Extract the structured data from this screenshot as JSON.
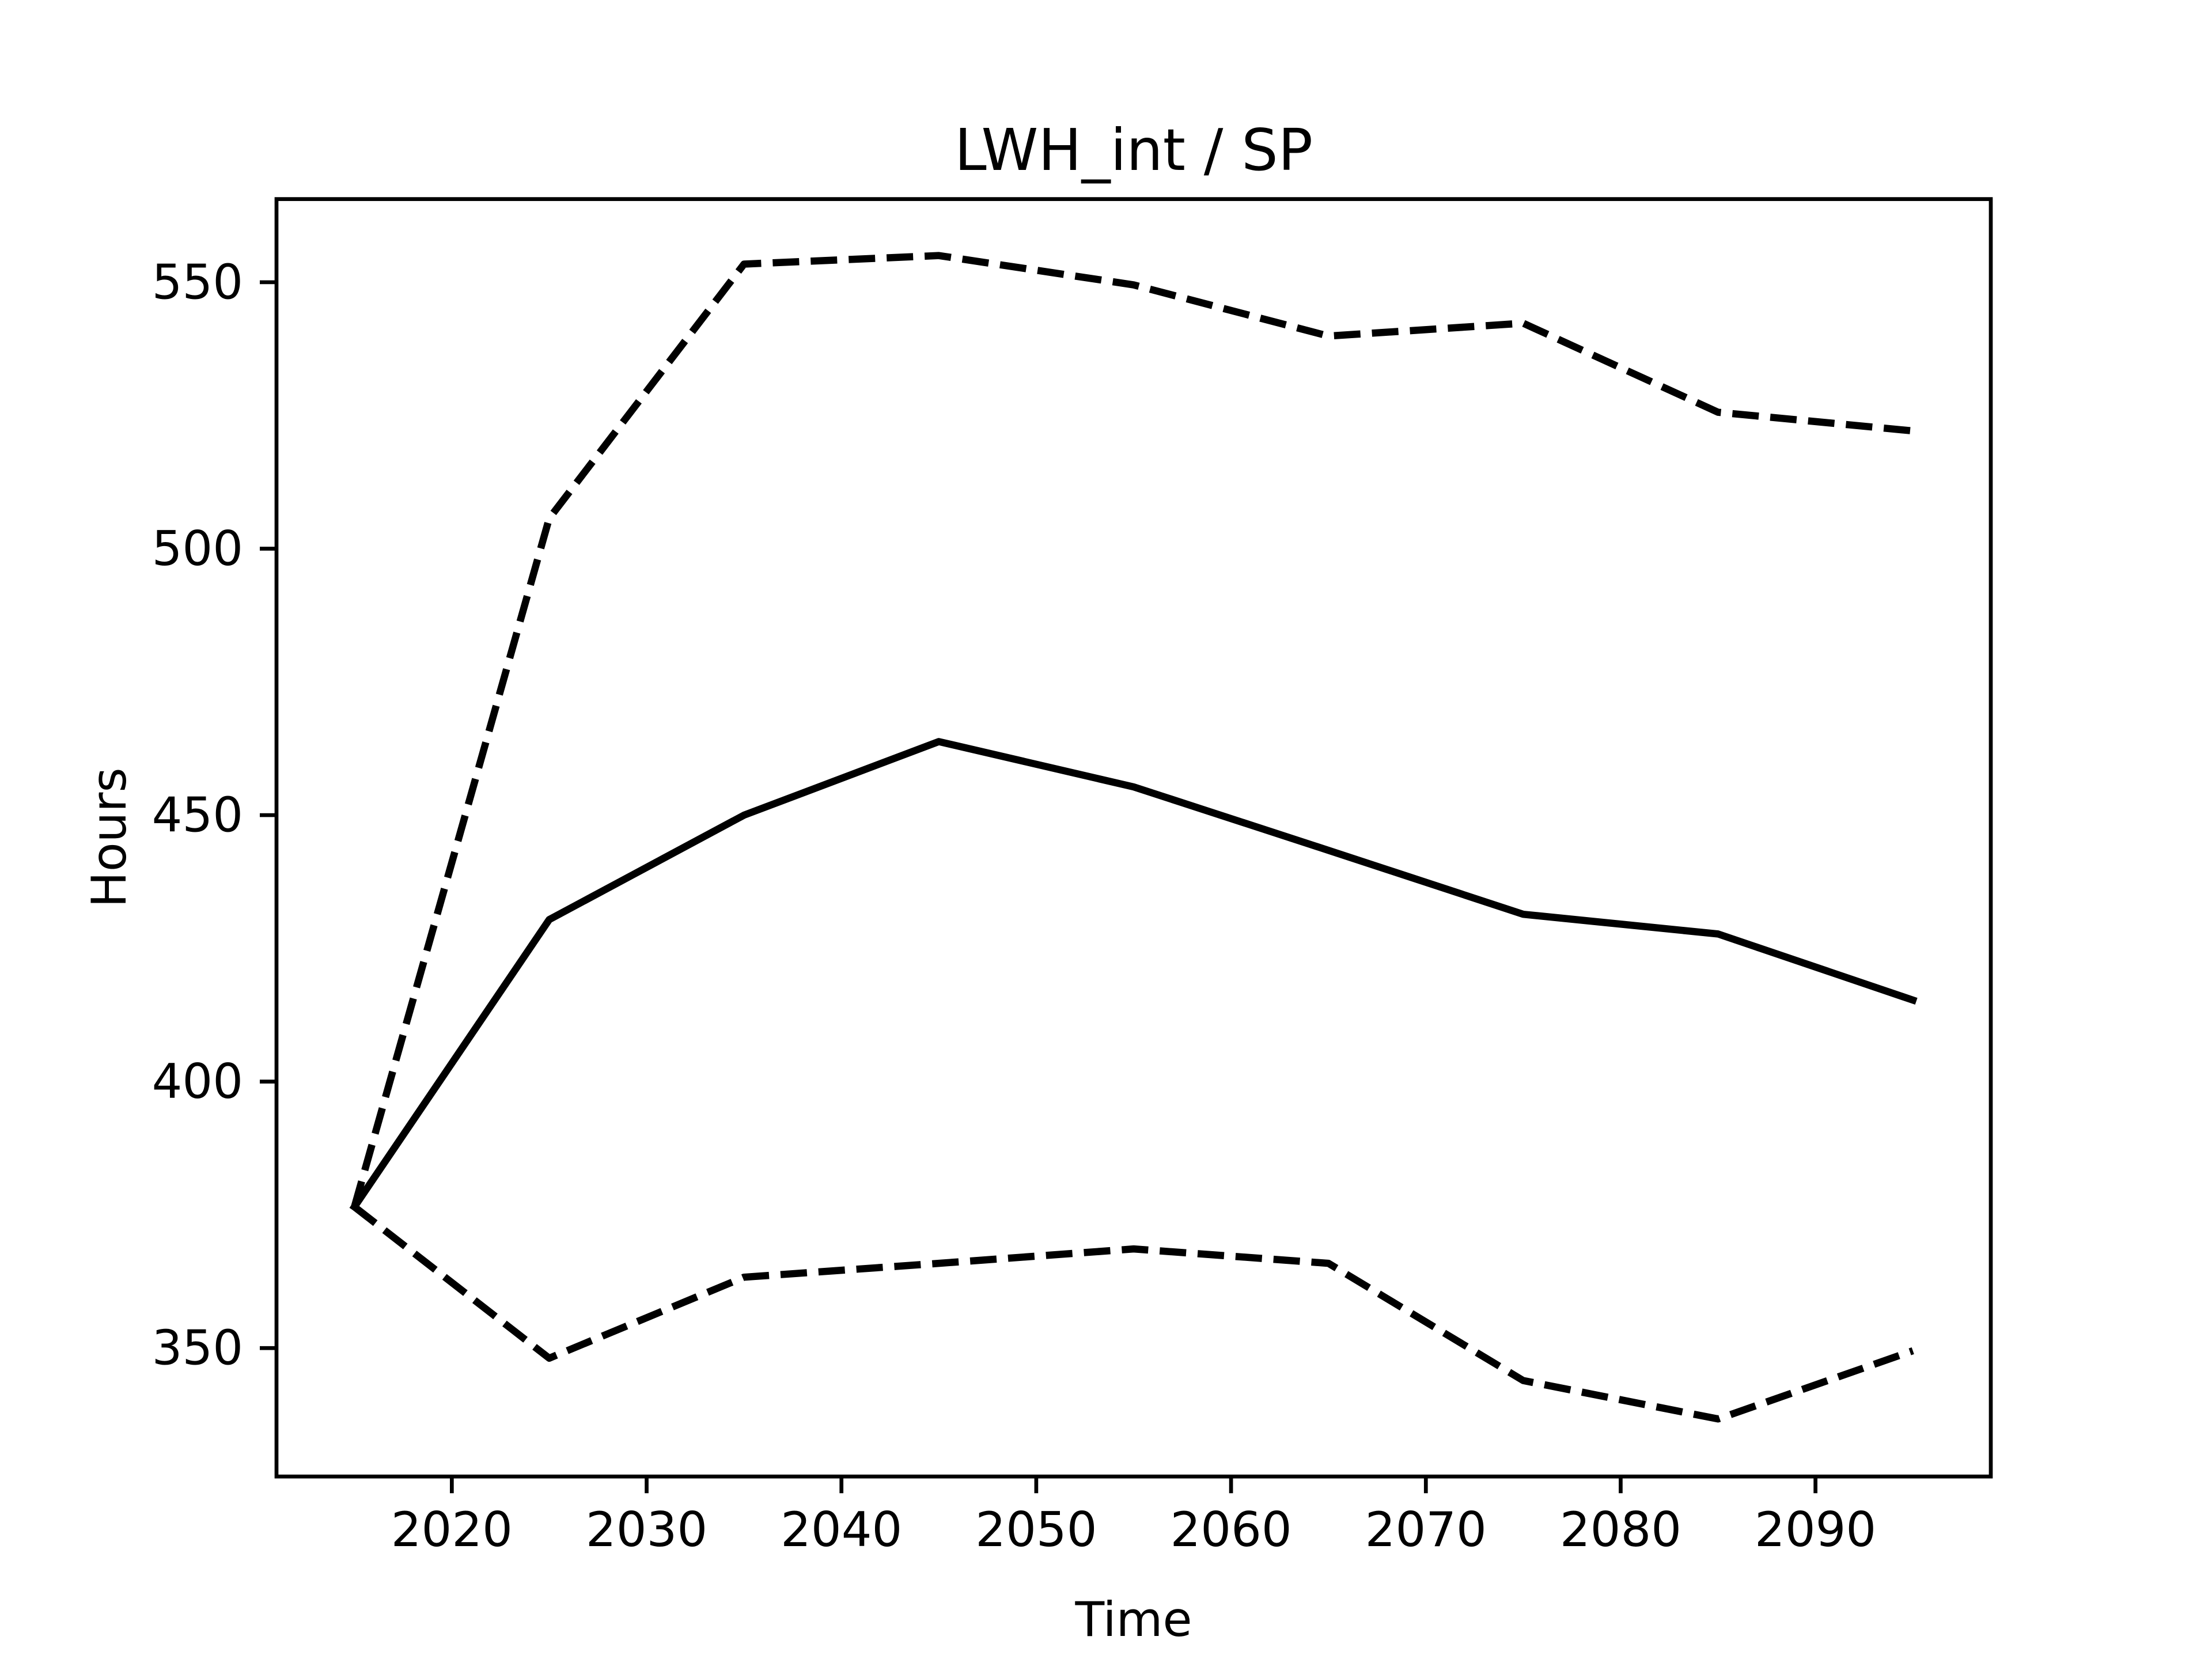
{
  "chart_data": {
    "type": "line",
    "title": "LWH_int / SP",
    "xlabel": "Time",
    "ylabel": "Hours",
    "x": [
      2015,
      2025,
      2035,
      2045,
      2055,
      2065,
      2075,
      2085,
      2095
    ],
    "series": [
      {
        "color": "#000000",
        "linestyle": "solid",
        "values": [
          376.5,
          430.4,
          450,
          463.8,
          455.3,
          443.4,
          431.4,
          427.7,
          415.3
        ]
      },
      {
        "color": "#000000",
        "linestyle": "dashed",
        "values": [
          376.5,
          505.7,
          553.4,
          555,
          549.5,
          539.9,
          542.3,
          525.6,
          522.1
        ]
      },
      {
        "color": "#000000",
        "linestyle": "dashed",
        "values": [
          376.5,
          348.1,
          363.3,
          365.9,
          368.6,
          365.9,
          343.9,
          336.7,
          349.5
        ]
      }
    ],
    "xlim": [
      2011,
      2099
    ],
    "xticks": [
      2020,
      2030,
      2040,
      2050,
      2060,
      2070,
      2080,
      2090
    ],
    "ylim": [
      325.9,
      565.6
    ],
    "yticks": [
      350,
      400,
      450,
      500,
      550
    ],
    "grid": false
  }
}
